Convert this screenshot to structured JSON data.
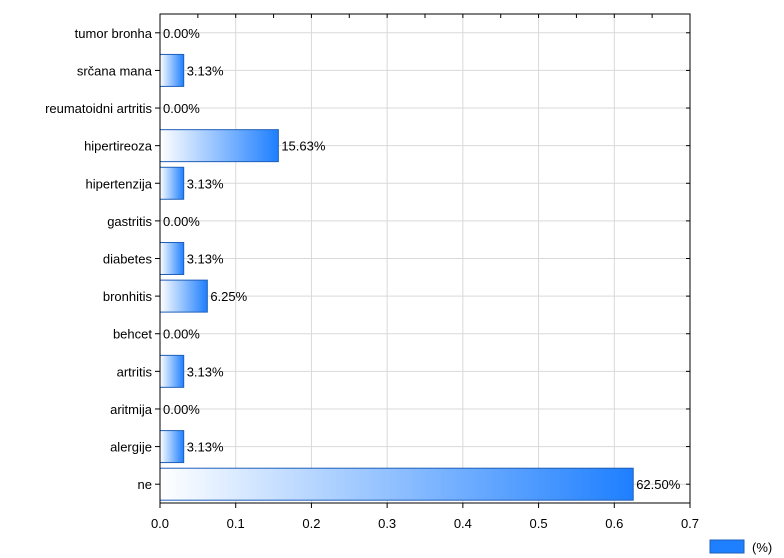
{
  "chart_data": {
    "type": "bar",
    "orientation": "horizontal",
    "categories": [
      "tumor bronha",
      "srčana mana",
      "reumatoidni artritis",
      "hipertireoza",
      "hipertenzija",
      "gastritis",
      "diabetes",
      "bronhitis",
      "behcet",
      "artritis",
      "aritmija",
      "alergije",
      "ne"
    ],
    "values": [
      0.0,
      0.0313,
      0.0,
      0.1563,
      0.0313,
      0.0,
      0.0313,
      0.0625,
      0.0,
      0.0313,
      0.0,
      0.0313,
      0.625
    ],
    "data_labels": [
      "0.00%",
      "3.13%",
      "0.00%",
      "15.63%",
      "3.13%",
      "0.00%",
      "3.13%",
      "6.25%",
      "0.00%",
      "3.13%",
      "0.00%",
      "3.13%",
      "62.50%"
    ],
    "x_ticks": [
      "0.0",
      "0.1",
      "0.2",
      "0.3",
      "0.4",
      "0.5",
      "0.6",
      "0.7"
    ],
    "xlim": [
      0,
      0.7
    ],
    "grid": true,
    "legend": {
      "label": "(%)",
      "placement": "bottom-right"
    },
    "bar_color_start": "#ffffff",
    "bar_color_end": "#1e7fff",
    "bar_border": "#1f5fb8"
  }
}
